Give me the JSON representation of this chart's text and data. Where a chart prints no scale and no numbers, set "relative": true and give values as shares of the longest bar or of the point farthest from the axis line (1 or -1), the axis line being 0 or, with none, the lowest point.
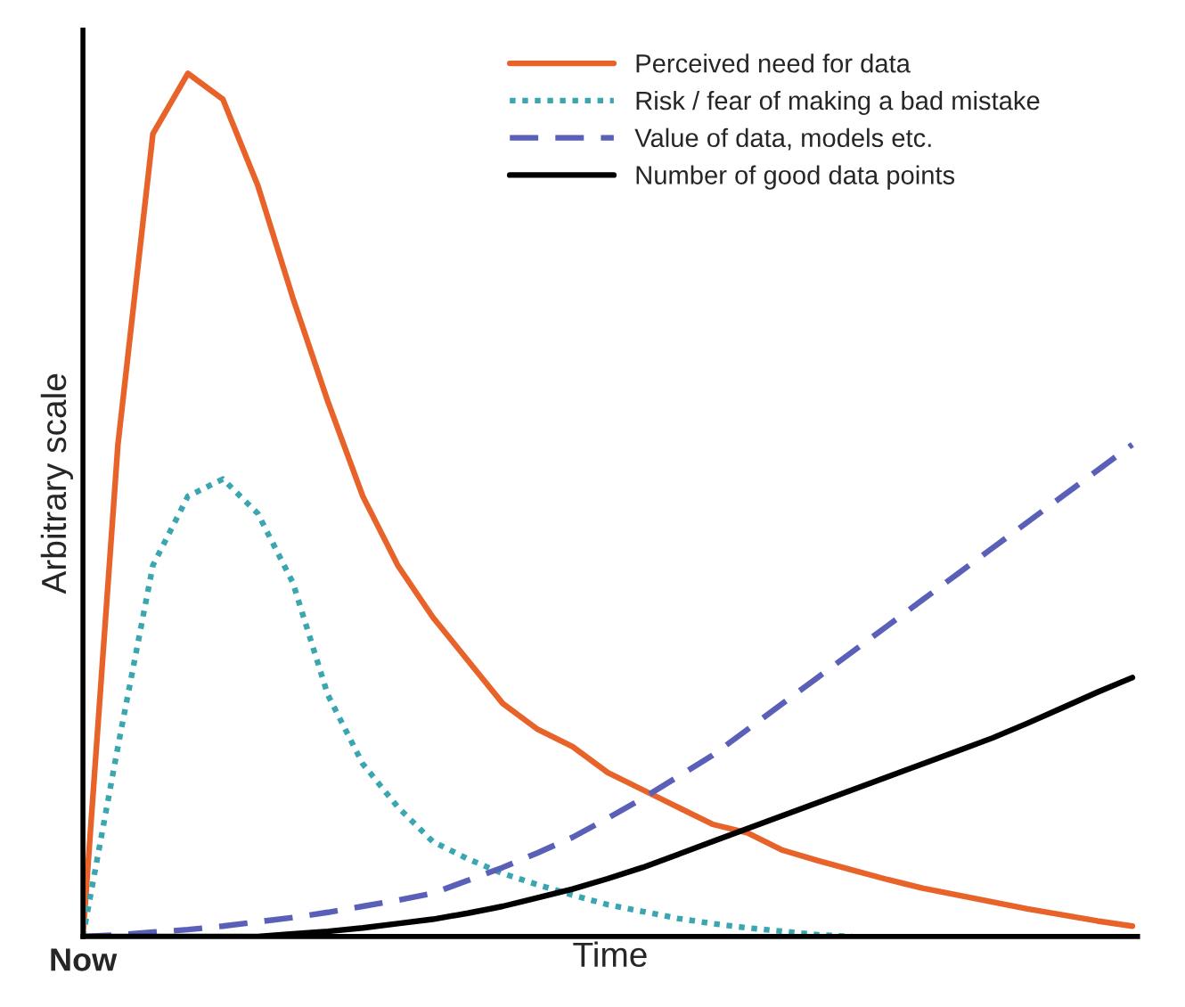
{
  "chart_data": {
    "type": "line",
    "relative": true,
    "xlabel": "Time",
    "ylabel": "Arbitrary scale",
    "legend": "top right",
    "annotations": [
      "Now"
    ],
    "categories": [
      null,
      null,
      null,
      null,
      null,
      null,
      null,
      null,
      null,
      null,
      null,
      null,
      null,
      null,
      null,
      null,
      null,
      null,
      null,
      null,
      null,
      null,
      null,
      null,
      null,
      null,
      null,
      null,
      null,
      null,
      null
    ],
    "series": [
      {
        "name": "Perceived need for data",
        "color": "#e8632a",
        "line_style": "solid",
        "values": [
          0,
          0.57,
          0.93,
          1.0,
          0.97,
          0.87,
          0.74,
          0.62,
          0.51,
          0.43,
          0.37,
          0.32,
          0.27,
          0.24,
          0.22,
          0.19,
          0.17,
          0.15,
          0.13,
          0.12,
          0.1,
          0.088,
          0.077,
          0.066,
          0.056,
          0.048,
          0.04,
          0.032,
          0.025,
          0.018,
          0.012
        ]
      },
      {
        "name": "Risk / fear of making a bad mistake",
        "color": "#3aa6b0",
        "line_style": "dotted",
        "values": [
          0,
          0.22,
          0.43,
          0.51,
          0.53,
          0.49,
          0.41,
          0.28,
          0.2,
          0.15,
          0.11,
          0.09,
          0.073,
          0.06,
          0.048,
          0.037,
          0.029,
          0.021,
          0.015,
          0.01,
          0.006,
          0.002,
          0,
          null,
          null,
          null,
          null,
          null,
          null,
          null,
          null
        ]
      },
      {
        "name": "Value of data, models etc.",
        "color": "#5a5fb8",
        "line_style": "dashed",
        "values": [
          0,
          0.002,
          0.005,
          0.008,
          0.012,
          0.017,
          0.022,
          0.028,
          0.035,
          0.042,
          0.05,
          0.065,
          0.08,
          0.097,
          0.115,
          0.137,
          0.16,
          0.185,
          0.21,
          0.24,
          0.27,
          0.3,
          0.33,
          0.36,
          0.39,
          0.42,
          0.45,
          0.48,
          0.51,
          0.54,
          0.57
        ]
      },
      {
        "name": "Number of good data points",
        "color": "#000000",
        "line_style": "solid",
        "values": [
          0,
          0,
          0,
          0,
          0,
          0,
          0.003,
          0.006,
          0.01,
          0.015,
          0.02,
          0.027,
          0.035,
          0.045,
          0.055,
          0.067,
          0.08,
          0.095,
          0.11,
          0.125,
          0.14,
          0.155,
          0.17,
          0.185,
          0.2,
          0.215,
          0.23,
          0.247,
          0.265,
          0.283,
          0.3
        ]
      }
    ]
  }
}
